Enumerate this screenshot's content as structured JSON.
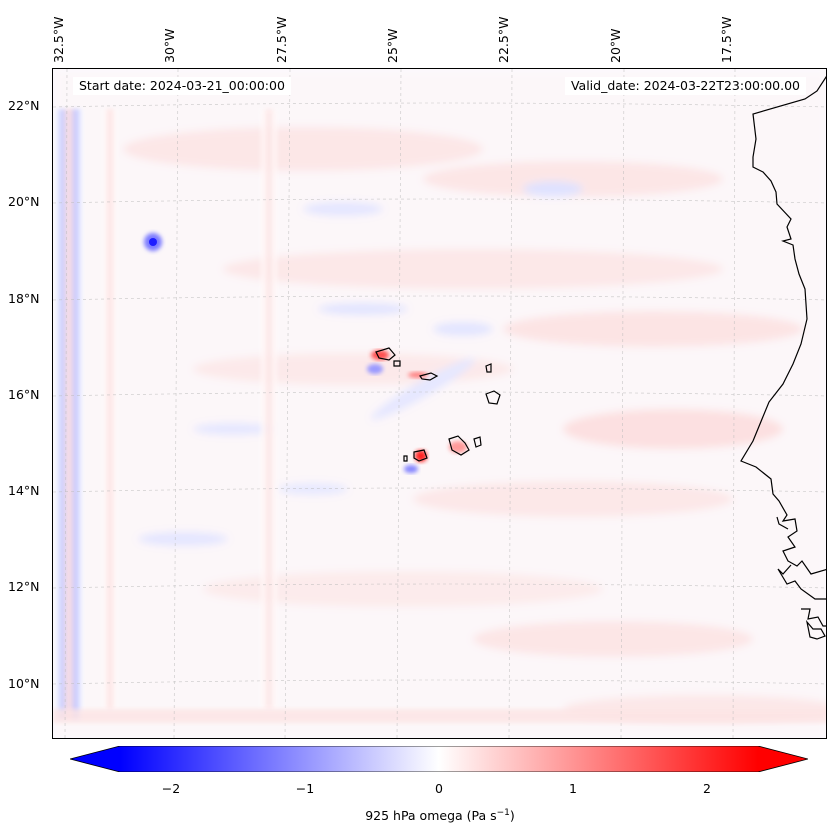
{
  "map": {
    "start_date": "Start date: 2024-03-21_00:00:00",
    "valid_date": "Valid_date: 2024-03-22T23:00:00.00",
    "lon_labels": [
      "32.5°W",
      "30°W",
      "27.5°W",
      "25°W",
      "22.5°W",
      "20°W",
      "17.5°W"
    ],
    "lat_labels": [
      "22°N",
      "20°N",
      "18°N",
      "16°N",
      "14°N",
      "12°N",
      "10°N"
    ],
    "field": "925 hPa omega",
    "projection_grid": "dashed gray graticule",
    "coastlines": "black"
  },
  "colorbar": {
    "caption": "925 hPa omega (Pa s",
    "caption_sup": "−1",
    "caption_end": ")",
    "ticks": [
      "−2",
      "−1",
      "0",
      "1",
      "2"
    ],
    "range": [
      -2.6,
      2.6
    ],
    "colormap": "bwr",
    "extend": "both",
    "color_low": "#0000ff",
    "color_mid": "#ffffff",
    "color_high": "#ff0000"
  }
}
